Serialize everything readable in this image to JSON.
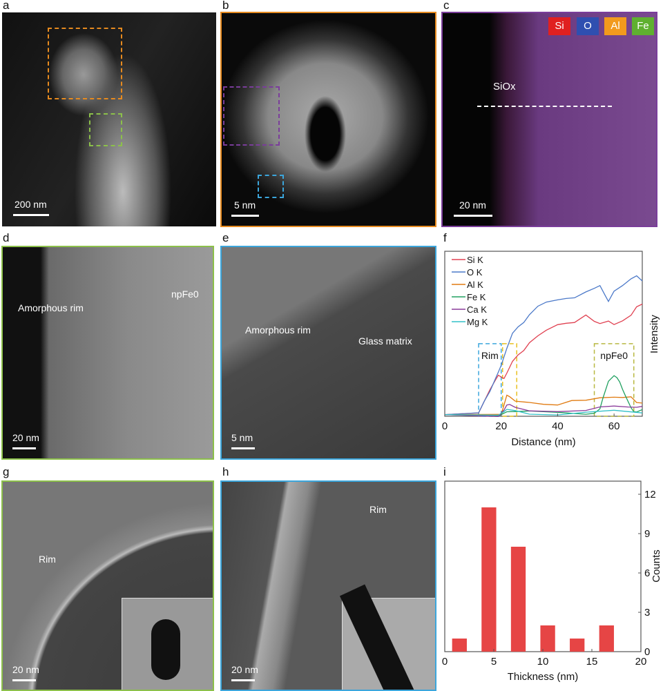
{
  "panels": {
    "a": "a",
    "b": "b",
    "c": "c",
    "d": "d",
    "e": "e",
    "f": "f",
    "g": "g",
    "h": "h",
    "i": "i"
  },
  "a": {
    "scale": "200 nm"
  },
  "b": {
    "scale": "5 nm"
  },
  "c": {
    "scale": "20 nm",
    "label": "SiOx",
    "legend": [
      {
        "name": "Si",
        "color": "#e02020"
      },
      {
        "name": "O",
        "color": "#2f4fb0"
      },
      {
        "name": "Al",
        "color": "#f29a1d"
      },
      {
        "name": "Fe",
        "color": "#5fb030"
      }
    ]
  },
  "d": {
    "scale": "20 nm",
    "rim": "Amorphous rim",
    "np": "npFe0"
  },
  "e": {
    "scale": "5 nm",
    "rim": "Amorphous rim",
    "glass": "Glass matrix"
  },
  "g": {
    "scale": "20 nm",
    "rim": "Rim"
  },
  "h": {
    "scale": "20 nm",
    "rim": "Rim"
  },
  "chart_data": [
    {
      "type": "line",
      "panel": "f",
      "xlabel": "Distance (nm)",
      "ylabel": "Intensity",
      "xlim": [
        0,
        70
      ],
      "ylim": [
        0,
        100
      ],
      "xticks": [
        0,
        20,
        40,
        60
      ],
      "annotations": [
        {
          "text": "Rim",
          "x": [
            12,
            20
          ],
          "color": "#3ba6dc"
        },
        {
          "text": "",
          "x": [
            20.5,
            25.5
          ],
          "color": "#e8c020"
        },
        {
          "text": "npFe0",
          "x": [
            53,
            67
          ],
          "color": "#b8b840"
        }
      ],
      "series": [
        {
          "name": "Si K",
          "color": "#e04050",
          "x": [
            0,
            12,
            14,
            16,
            18,
            19,
            20,
            21,
            22,
            24,
            26,
            28,
            30,
            33,
            36,
            40,
            43,
            46,
            50,
            53,
            55,
            58,
            60,
            63,
            66,
            68,
            70
          ],
          "y": [
            1,
            1,
            8,
            16,
            23,
            26,
            24,
            22,
            25,
            33,
            38,
            41,
            45,
            48,
            51,
            55,
            57,
            58,
            62,
            57,
            55,
            57,
            56,
            59,
            62,
            66,
            68
          ]
        },
        {
          "name": "O K",
          "color": "#4a78c8",
          "x": [
            0,
            12,
            14,
            16,
            18,
            19,
            20,
            22,
            24,
            26,
            28,
            30,
            33,
            36,
            40,
            43,
            46,
            50,
            53,
            55,
            57,
            58,
            60,
            63,
            66,
            68,
            70
          ],
          "y": [
            1,
            1,
            9,
            16,
            24,
            27,
            30,
            40,
            50,
            55,
            58,
            62,
            66,
            68,
            70,
            72,
            73,
            76,
            77,
            78,
            72,
            70,
            77,
            80,
            83,
            84,
            82
          ]
        },
        {
          "name": "Al K",
          "color": "#e07a10",
          "x": [
            0,
            19,
            20,
            21,
            22,
            23,
            25,
            30,
            35,
            40,
            45,
            50,
            55,
            60,
            63,
            66,
            68,
            70
          ],
          "y": [
            1,
            1,
            2,
            8,
            13,
            11,
            8,
            8,
            8,
            8,
            10,
            9,
            10,
            11,
            12,
            13,
            9,
            8
          ]
        },
        {
          "name": "Fe K",
          "color": "#20a060",
          "x": [
            0,
            19,
            21,
            22,
            25,
            30,
            40,
            50,
            53,
            55,
            56,
            58,
            60,
            61,
            62,
            63,
            64,
            66,
            67,
            68,
            70
          ],
          "y": [
            1,
            1,
            3,
            3,
            2,
            2,
            2,
            2,
            3,
            5,
            10,
            20,
            24,
            24,
            22,
            17,
            12,
            4,
            2,
            3,
            4
          ]
        },
        {
          "name": "Ca K",
          "color": "#8a3a9a",
          "x": [
            0,
            19,
            21,
            22,
            23,
            25,
            30,
            40,
            50,
            55,
            60,
            65,
            68,
            70
          ],
          "y": [
            1,
            1,
            4,
            6,
            6,
            5,
            4,
            4,
            4,
            5,
            5,
            5,
            6,
            6
          ]
        },
        {
          "name": "Mg K",
          "color": "#30c0c8",
          "x": [
            0,
            19,
            21,
            22,
            25,
            30,
            40,
            50,
            60,
            70
          ],
          "y": [
            1,
            1,
            2,
            3,
            3,
            2,
            2,
            3,
            3,
            2
          ]
        }
      ]
    },
    {
      "type": "bar",
      "panel": "i",
      "xlabel": "Thickness (nm)",
      "ylabel": "Counts",
      "xlim": [
        0,
        20
      ],
      "ylim": [
        0,
        13
      ],
      "xticks": [
        0,
        5,
        10,
        15,
        20
      ],
      "yticks": [
        0,
        3,
        6,
        9,
        12
      ],
      "bar_width": 1.5,
      "color": "#e64545",
      "x": [
        1.5,
        4.5,
        7.5,
        10.5,
        13.5,
        16.5
      ],
      "values": [
        1,
        11,
        8,
        2,
        1,
        2
      ]
    }
  ]
}
